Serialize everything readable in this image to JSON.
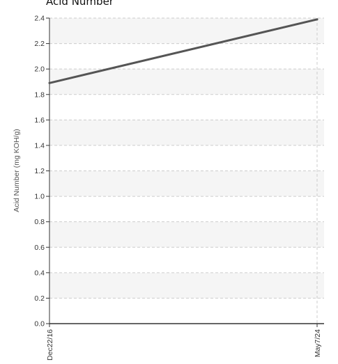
{
  "chart_data": {
    "type": "line",
    "title": "Acid Number",
    "xlabel": "",
    "ylabel": "Acid Number (mg KOH/g)",
    "x": [
      "Dec22/16",
      "May7/24"
    ],
    "series": [
      {
        "values": [
          1.89,
          2.39
        ]
      }
    ],
    "ylim": [
      0,
      2.4
    ],
    "yticks": [
      "0.0",
      "0.2",
      "0.4",
      "0.6",
      "0.8",
      "1.0",
      "1.2",
      "1.4",
      "1.6",
      "1.8",
      "2.0",
      "2.2",
      "2.4"
    ],
    "grid": true,
    "legend": "none",
    "colors": {
      "line": "#555555",
      "band": "#f5f5f5",
      "grid": "#cccccc",
      "axis": "#333333"
    }
  }
}
